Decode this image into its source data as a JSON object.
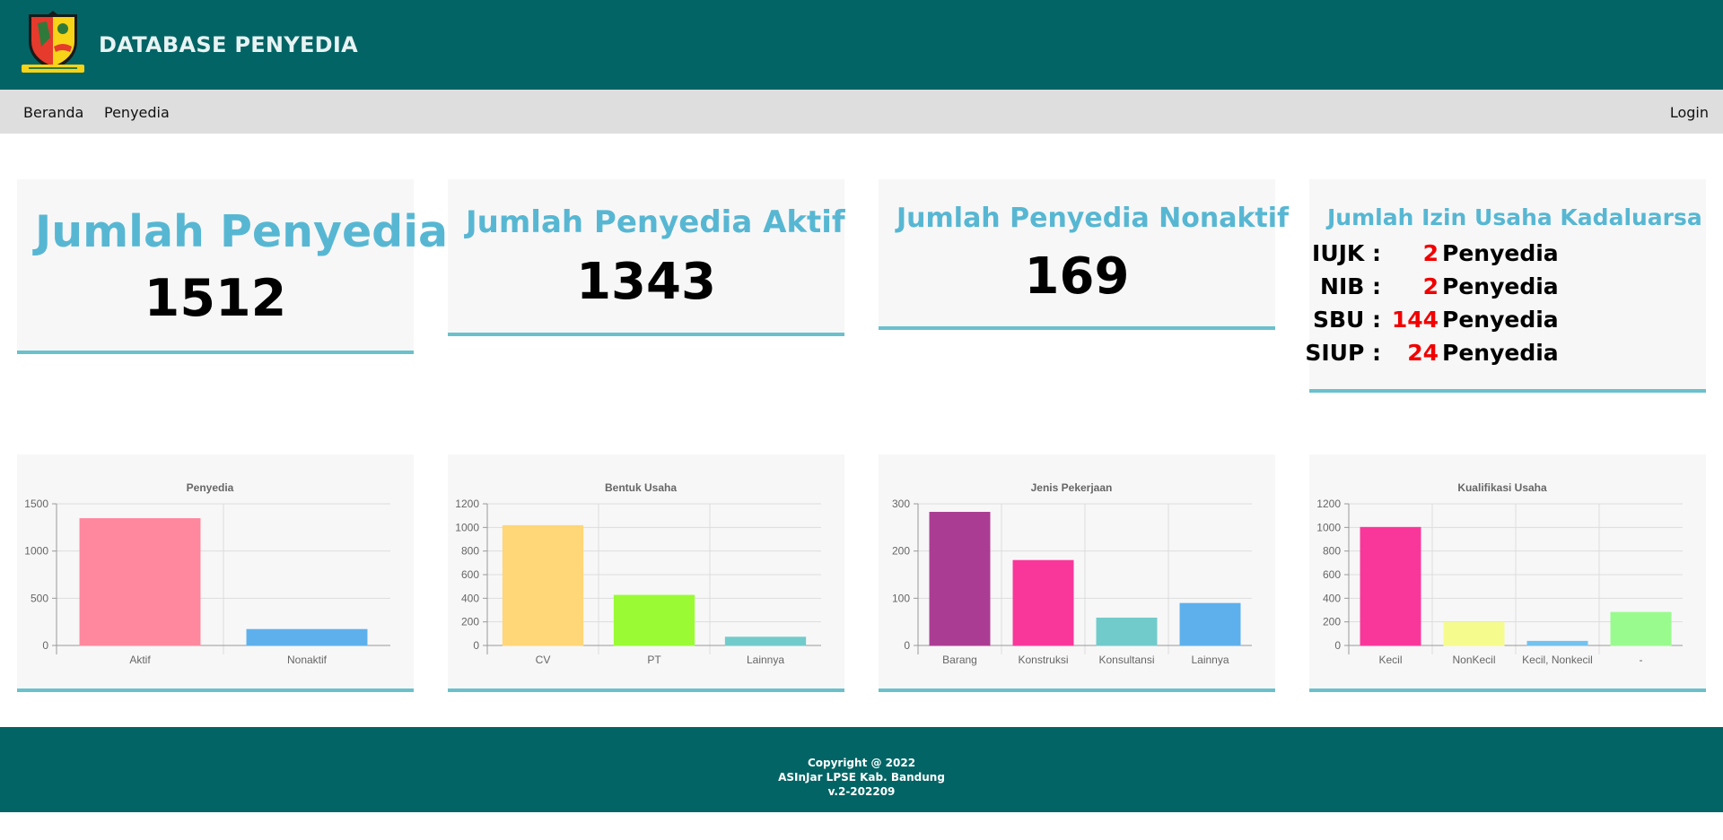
{
  "header": {
    "title": "DATABASE PENYEDIA"
  },
  "nav": {
    "beranda": "Beranda",
    "penyedia": "Penyedia",
    "login": "Login"
  },
  "stats": {
    "total": {
      "title": "Jumlah Penyedia",
      "value": "1512"
    },
    "aktif": {
      "title": "Jumlah Penyedia Aktif",
      "value": "1343"
    },
    "nonaktif": {
      "title": "Jumlah Penyedia Nonaktif",
      "value": "169"
    },
    "expired": {
      "title": "Jumlah Izin Usaha Kadaluarsa",
      "rows": [
        {
          "label": "IUJK :",
          "count": "2",
          "unit": "Penyedia"
        },
        {
          "label": "NIB :",
          "count": "2",
          "unit": "Penyedia"
        },
        {
          "label": "SBU :",
          "count": "144",
          "unit": "Penyedia"
        },
        {
          "label": "SIUP :",
          "count": "24",
          "unit": "Penyedia"
        }
      ]
    }
  },
  "chart_data": [
    {
      "type": "bar",
      "title": "Penyedia",
      "categories": [
        "Aktif",
        "Nonaktif"
      ],
      "values": [
        1343,
        169
      ],
      "colors": [
        "#ff879e",
        "#5eb0ec"
      ],
      "ylim": [
        0,
        1500
      ],
      "yticks": [
        0,
        500,
        1000,
        1500
      ],
      "grid": true
    },
    {
      "type": "bar",
      "title": "Bentuk Usaha",
      "categories": [
        "CV",
        "PT",
        "Lainnya"
      ],
      "values": [
        1015,
        425,
        70
      ],
      "colors": [
        "#ffd678",
        "#9afb34",
        "#72cbcb"
      ],
      "ylim": [
        0,
        1200
      ],
      "yticks": [
        0,
        200,
        400,
        600,
        800,
        1000,
        1200
      ],
      "grid": true
    },
    {
      "type": "bar",
      "title": "Jenis Pekerjaan",
      "categories": [
        "Barang",
        "Konstruksi",
        "Konsultansi",
        "Lainnya"
      ],
      "values": [
        282,
        180,
        58,
        89
      ],
      "colors": [
        "#ab3c93",
        "#f9379b",
        "#72cbcb",
        "#5eb0ec"
      ],
      "ylim": [
        0,
        300
      ],
      "yticks": [
        0,
        100,
        200,
        300
      ],
      "grid": true
    },
    {
      "type": "bar",
      "title": "Kualifikasi Usaha",
      "categories": [
        "Kecil",
        "NonKecil",
        "Kecil, Nonkecil",
        "-"
      ],
      "values": [
        1000,
        195,
        35,
        280
      ],
      "colors": [
        "#f9379b",
        "#f6fb8e",
        "#72c3ef",
        "#99fb8e"
      ],
      "ylim": [
        0,
        1200
      ],
      "yticks": [
        0,
        200,
        400,
        600,
        800,
        1000,
        1200
      ],
      "grid": true
    }
  ],
  "footer": {
    "line1": "Copyright @ 2022",
    "line2": "ASInJar LPSE Kab. Bandung",
    "line3": "v.2-202209"
  }
}
